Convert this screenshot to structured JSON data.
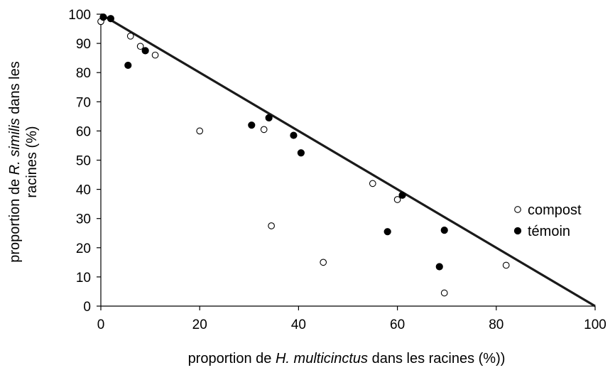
{
  "chart_data": {
    "type": "scatter",
    "xlabel": {
      "prefix": "proportion de ",
      "italic": "H. multicinctus",
      "suffix": " dans les racines (%))"
    },
    "ylabel": {
      "line1_prefix": "proportion de ",
      "line1_italic": "R. similis",
      "line1_suffix": " dans les",
      "line2": "racines (%)"
    },
    "xlim": [
      0,
      100
    ],
    "ylim": [
      0,
      100
    ],
    "x_ticks": [
      0,
      20,
      40,
      60,
      80,
      100
    ],
    "y_ticks": [
      0,
      10,
      20,
      30,
      40,
      50,
      60,
      70,
      80,
      90,
      100
    ],
    "x_tick_labels": [
      "0",
      "20",
      "40",
      "60",
      "80",
      "100"
    ],
    "y_tick_labels": [
      "0",
      "10",
      "20",
      "30",
      "40",
      "50",
      "60",
      "70",
      "80",
      "90",
      "100"
    ],
    "grid": false,
    "legend_position": "right",
    "reference_line": {
      "from": [
        0,
        100
      ],
      "to": [
        100,
        0
      ],
      "color": "#1a1a1a"
    },
    "series": [
      {
        "name": "compost",
        "marker": "open-circle",
        "points": [
          {
            "x": 0,
            "y": 97.5
          },
          {
            "x": 6,
            "y": 92.5
          },
          {
            "x": 8,
            "y": 89
          },
          {
            "x": 11,
            "y": 86
          },
          {
            "x": 20,
            "y": 60
          },
          {
            "x": 33,
            "y": 60.5
          },
          {
            "x": 34.5,
            "y": 27.5
          },
          {
            "x": 45,
            "y": 15
          },
          {
            "x": 55,
            "y": 42
          },
          {
            "x": 60,
            "y": 36.5
          },
          {
            "x": 69.5,
            "y": 4.5
          },
          {
            "x": 82,
            "y": 14
          }
        ]
      },
      {
        "name": "témoin",
        "marker": "filled-circle",
        "points": [
          {
            "x": 0.5,
            "y": 99
          },
          {
            "x": 2,
            "y": 98.5
          },
          {
            "x": 5.5,
            "y": 82.5
          },
          {
            "x": 9,
            "y": 87.5
          },
          {
            "x": 30.5,
            "y": 62
          },
          {
            "x": 34,
            "y": 64.5
          },
          {
            "x": 39,
            "y": 58.5
          },
          {
            "x": 40.5,
            "y": 52.5
          },
          {
            "x": 58,
            "y": 25.5
          },
          {
            "x": 61,
            "y": 38
          },
          {
            "x": 68.5,
            "y": 13.5
          },
          {
            "x": 69.5,
            "y": 26
          }
        ]
      }
    ]
  }
}
